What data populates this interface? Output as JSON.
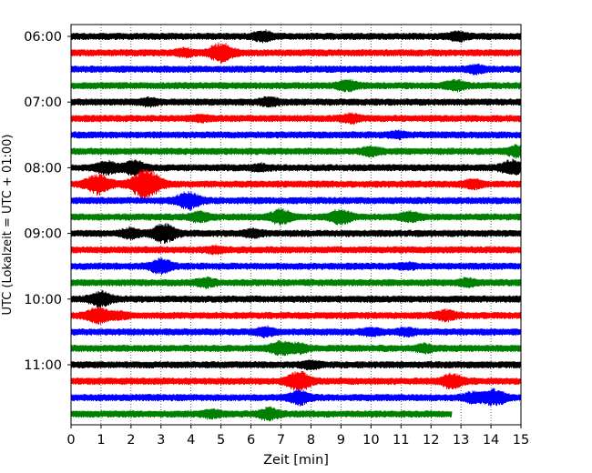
{
  "chart_data": {
    "type": "line",
    "title": "",
    "xlabel": "Zeit  [min]",
    "ylabel": "UTC (Lokalzeit = UTC + 01:00)",
    "xlim": [
      0,
      15
    ],
    "x_ticks": [
      0,
      1,
      2,
      3,
      4,
      5,
      6,
      7,
      8,
      9,
      10,
      11,
      12,
      13,
      14,
      15
    ],
    "x_tick_labels": [
      "0",
      "1",
      "2",
      "3",
      "4",
      "5",
      "6",
      "7",
      "8",
      "9",
      "10",
      "11",
      "12",
      "13",
      "14",
      "15"
    ],
    "grid": "vertical dotted",
    "trace_interval_min": 15,
    "y_tick_labels": [
      "06:00",
      "07:00",
      "08:00",
      "09:00",
      "10:00",
      "11:00"
    ],
    "colors": [
      "#000000",
      "#ff0000",
      "#0000ff",
      "#008000"
    ],
    "traces": [
      {
        "start": "06:00",
        "color": "#000000",
        "end_min": 15,
        "events": [
          [
            6.4,
            0.6
          ],
          [
            12.9,
            0.5
          ]
        ]
      },
      {
        "start": "06:15",
        "color": "#ff0000",
        "end_min": 15,
        "events": [
          [
            5.0,
            1.2
          ],
          [
            3.8,
            0.4
          ]
        ]
      },
      {
        "start": "06:30",
        "color": "#0000ff",
        "end_min": 15,
        "events": [
          [
            13.5,
            0.4
          ]
        ]
      },
      {
        "start": "06:45",
        "color": "#008000",
        "end_min": 15,
        "events": [
          [
            9.2,
            0.6
          ],
          [
            12.8,
            0.6
          ]
        ]
      },
      {
        "start": "07:00",
        "color": "#000000",
        "end_min": 15,
        "events": [
          [
            6.6,
            0.5
          ],
          [
            2.6,
            0.4
          ]
        ]
      },
      {
        "start": "07:15",
        "color": "#ff0000",
        "end_min": 15,
        "events": [
          [
            9.3,
            0.5
          ],
          [
            4.3,
            0.3
          ]
        ]
      },
      {
        "start": "07:30",
        "color": "#0000ff",
        "end_min": 15,
        "events": [
          [
            10.9,
            0.3
          ]
        ]
      },
      {
        "start": "07:45",
        "color": "#008000",
        "end_min": 15,
        "events": [
          [
            10.0,
            0.5
          ],
          [
            14.9,
            0.7
          ]
        ]
      },
      {
        "start": "08:00",
        "color": "#000000",
        "end_min": 15,
        "events": [
          [
            1.2,
            0.8
          ],
          [
            2.1,
            0.9
          ],
          [
            14.7,
            0.9
          ],
          [
            6.3,
            0.3
          ]
        ]
      },
      {
        "start": "08:15",
        "color": "#ff0000",
        "end_min": 15,
        "events": [
          [
            0.9,
            1.3
          ],
          [
            2.5,
            2.0
          ],
          [
            13.4,
            0.5
          ]
        ]
      },
      {
        "start": "08:30",
        "color": "#0000ff",
        "end_min": 15,
        "events": [
          [
            3.9,
            1.1
          ]
        ]
      },
      {
        "start": "08:45",
        "color": "#008000",
        "end_min": 15,
        "events": [
          [
            4.3,
            0.6
          ],
          [
            7.0,
            0.9
          ],
          [
            9.0,
            0.9
          ],
          [
            11.3,
            0.6
          ]
        ]
      },
      {
        "start": "09:00",
        "color": "#000000",
        "end_min": 15,
        "events": [
          [
            2.0,
            0.6
          ],
          [
            3.1,
            1.2
          ],
          [
            6.1,
            0.4
          ]
        ]
      },
      {
        "start": "09:15",
        "color": "#ff0000",
        "end_min": 15,
        "events": [
          [
            4.8,
            0.3
          ]
        ]
      },
      {
        "start": "09:30",
        "color": "#0000ff",
        "end_min": 15,
        "events": [
          [
            3.0,
            0.9
          ],
          [
            11.2,
            0.3
          ]
        ]
      },
      {
        "start": "09:45",
        "color": "#008000",
        "end_min": 15,
        "events": [
          [
            4.5,
            0.5
          ],
          [
            13.2,
            0.4
          ]
        ]
      },
      {
        "start": "10:00",
        "color": "#000000",
        "end_min": 15,
        "events": [
          [
            1.0,
            0.9
          ]
        ]
      },
      {
        "start": "10:15",
        "color": "#ff0000",
        "end_min": 15,
        "events": [
          [
            0.9,
            1.0
          ],
          [
            1.6,
            0.4
          ],
          [
            12.5,
            0.6
          ]
        ]
      },
      {
        "start": "10:30",
        "color": "#0000ff",
        "end_min": 15,
        "events": [
          [
            6.5,
            0.5
          ],
          [
            10.0,
            0.4
          ],
          [
            11.2,
            0.4
          ]
        ]
      },
      {
        "start": "10:45",
        "color": "#008000",
        "end_min": 15,
        "events": [
          [
            7.0,
            0.8
          ],
          [
            7.6,
            0.5
          ],
          [
            11.8,
            0.4
          ]
        ]
      },
      {
        "start": "11:00",
        "color": "#000000",
        "end_min": 15,
        "events": [
          [
            8.0,
            0.4
          ]
        ]
      },
      {
        "start": "11:15",
        "color": "#ff0000",
        "end_min": 15,
        "events": [
          [
            7.6,
            1.2
          ],
          [
            12.7,
            0.9
          ]
        ]
      },
      {
        "start": "11:30",
        "color": "#0000ff",
        "end_min": 15,
        "events": [
          [
            7.6,
            0.8
          ],
          [
            13.4,
            0.6
          ],
          [
            14.1,
            1.0
          ]
        ]
      },
      {
        "start": "11:45",
        "color": "#008000",
        "end_min": 12.7,
        "events": [
          [
            4.7,
            0.4
          ],
          [
            6.6,
            0.7
          ]
        ]
      }
    ]
  }
}
